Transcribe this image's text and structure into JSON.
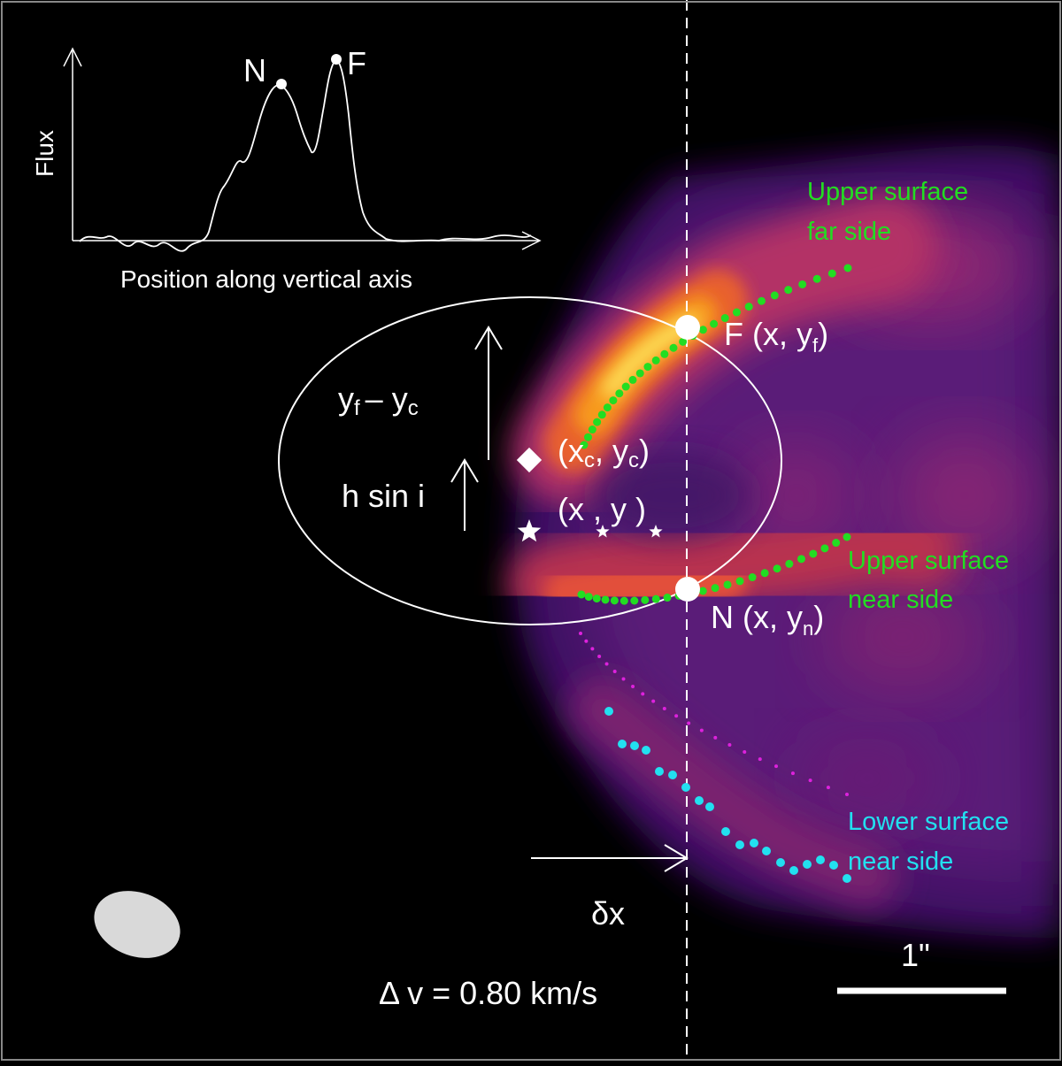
{
  "inset": {
    "ylabel": "Flux",
    "xlabel": "Position along vertical axis",
    "peak_near": "N",
    "peak_far": "F"
  },
  "labels": {
    "far_point": "F (x, y",
    "far_sub": "f",
    "near_point": "N (x, y",
    "near_sub": "n",
    "center_open": "(x",
    "center_sub": "c",
    "center_rest": ", y",
    "center_close": ")",
    "star_point": "(x , y )",
    "height_main": "y",
    "height_sub1": "f",
    "height_minus": "– y",
    "height_sub2": "c",
    "hsini": "h sin i",
    "offset": "δx",
    "velocity": "Δ v = 0.80 km/s",
    "scale": "1\""
  },
  "surfaces": {
    "upper_far": [
      "Upper surface",
      "far side"
    ],
    "upper_near": [
      "Upper surface",
      "near side"
    ],
    "lower_near": [
      "Lower surface",
      "near side"
    ]
  },
  "colors": {
    "upper": "#22dd22",
    "lower": "#22e0f0",
    "lower_far": "#dd22dd",
    "annotation": "#ffffff",
    "beam": "#d9d9d9"
  }
}
